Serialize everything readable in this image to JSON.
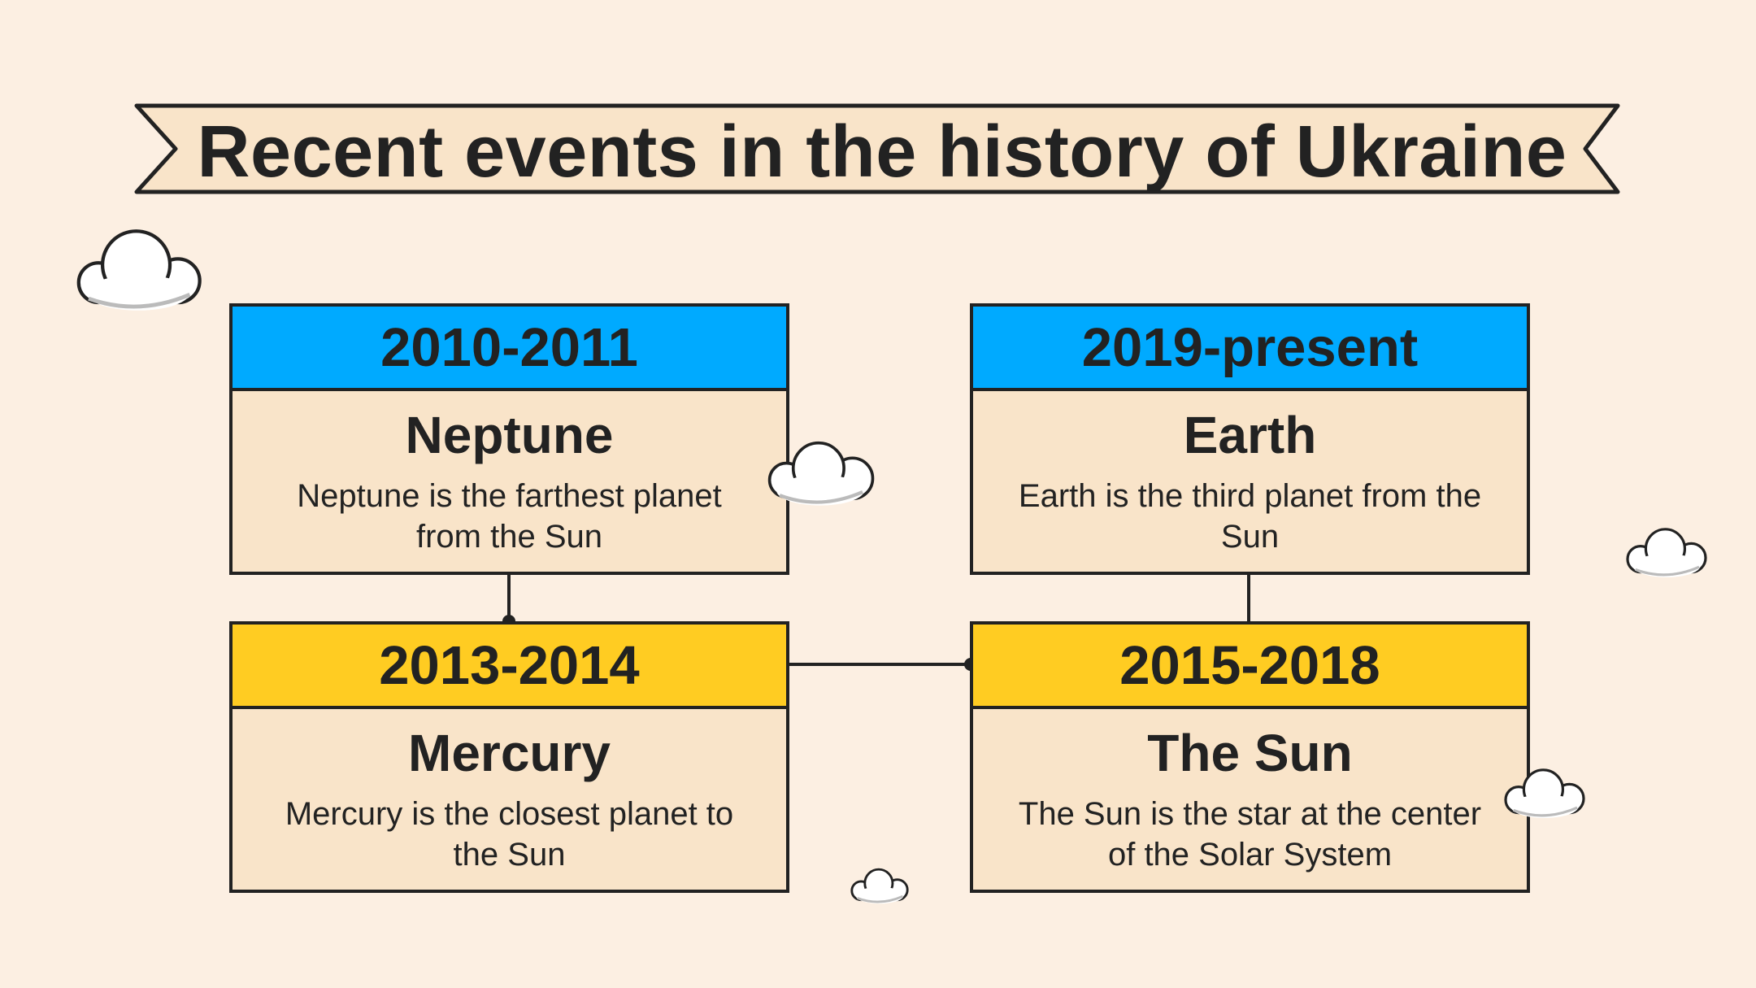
{
  "title": "Recent events in the history of Ukraine",
  "colors": {
    "background": "#fcefe2",
    "card_fill": "#f9e4c9",
    "header_blue": "#00aaff",
    "header_yellow": "#ffcc22",
    "outline": "#222222"
  },
  "events": [
    {
      "period": "2010-2011",
      "name": "Neptune",
      "description": "Neptune is the farthest planet from the Sun"
    },
    {
      "period": "2013-2014",
      "name": "Mercury",
      "description": "Mercury is the closest planet to the Sun"
    },
    {
      "period": "2015-2018",
      "name": "The Sun",
      "description": "The Sun is the star at the center of the Solar System"
    },
    {
      "period": "2019-present",
      "name": "Earth",
      "description": "Earth is the third planet from the Sun"
    }
  ]
}
